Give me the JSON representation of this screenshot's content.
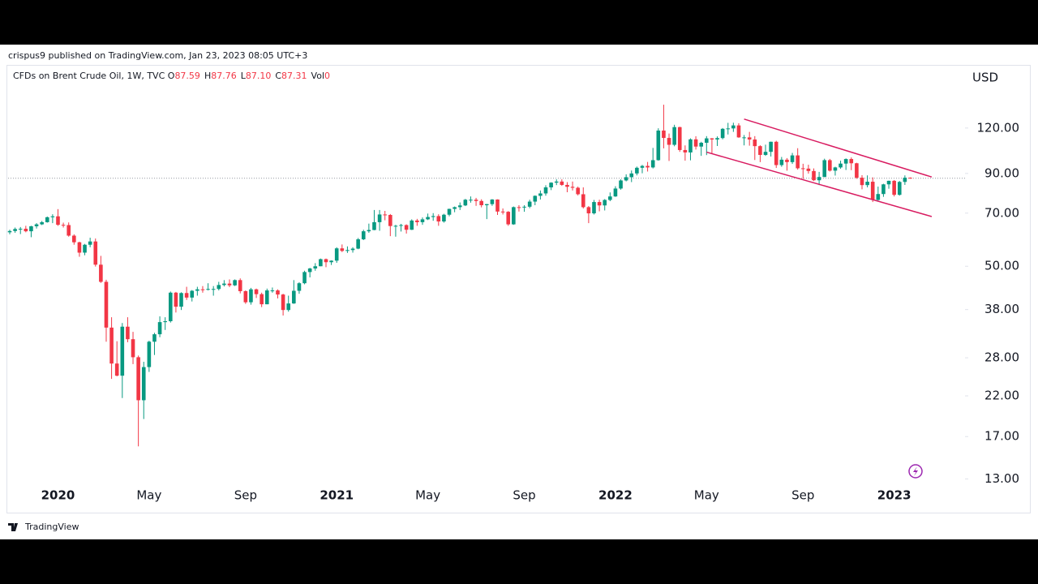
{
  "header": {
    "title": "crispus9 published on TradingView.com, Jan 23, 2023 08:05 UTC+3"
  },
  "footer": {
    "brand": "TradingView"
  },
  "chart_data": {
    "type": "candlestick",
    "legend": {
      "symbol": "CFDs on Brent Crude Oil, 1W, TVC",
      "items": [
        {
          "key": "O",
          "value": "87.59"
        },
        {
          "key": "H",
          "value": "87.76"
        },
        {
          "key": "L",
          "value": "87.10"
        },
        {
          "key": "C",
          "value": "87.31"
        },
        {
          "key": "Vol",
          "value": "0"
        }
      ]
    },
    "currency": "USD",
    "log_scale": true,
    "grid": false,
    "up_color": "#089981",
    "down_color": "#f23645",
    "channel_color": "#d81b60",
    "ylim": [
      12.7,
      179
    ],
    "yticks": [
      {
        "value": 13,
        "label": "13.00"
      },
      {
        "value": 17,
        "label": "17.00"
      },
      {
        "value": 22,
        "label": "22.00"
      },
      {
        "value": 28,
        "label": "28.00"
      },
      {
        "value": 38,
        "label": "38.00"
      },
      {
        "value": 50,
        "label": "50.00"
      },
      {
        "value": 70,
        "label": "70.00"
      },
      {
        "value": 90,
        "label": "90.00"
      },
      {
        "value": 120,
        "label": "120.00"
      }
    ],
    "categories": [
      null,
      null,
      null,
      null,
      null,
      null,
      null,
      null,
      null,
      "2020",
      null,
      null,
      null,
      null,
      null,
      null,
      null,
      null,
      null,
      null,
      null,
      null,
      null,
      null,
      null,
      null,
      "May",
      null,
      null,
      null,
      null,
      null,
      null,
      null,
      null,
      null,
      null,
      null,
      null,
      null,
      null,
      null,
      null,
      null,
      "Sep",
      null,
      null,
      null,
      null,
      null,
      null,
      null,
      null,
      null,
      null,
      null,
      null,
      null,
      null,
      null,
      null,
      "2021",
      null,
      null,
      null,
      null,
      null,
      null,
      null,
      null,
      null,
      null,
      null,
      null,
      null,
      null,
      null,
      null,
      "May",
      null,
      null,
      null,
      null,
      null,
      null,
      null,
      null,
      null,
      null,
      null,
      null,
      null,
      null,
      null,
      null,
      null,
      "Sep",
      null,
      null,
      null,
      null,
      null,
      null,
      null,
      null,
      null,
      null,
      null,
      null,
      null,
      null,
      null,
      null,
      "2022",
      null,
      null,
      null,
      null,
      null,
      null,
      null,
      null,
      null,
      null,
      null,
      null,
      null,
      null,
      null,
      null,
      "May",
      null,
      null,
      null,
      null,
      null,
      null,
      null,
      null,
      null,
      null,
      null,
      null,
      null,
      null,
      null,
      null,
      null,
      "Sep",
      null,
      null,
      null,
      null,
      null,
      null,
      null,
      null,
      null,
      null,
      null,
      null,
      null,
      null,
      null,
      null,
      "2023",
      null,
      null,
      null
    ],
    "open": [
      62.0,
      62.5,
      63.3,
      63.4,
      62.4,
      64.4,
      65.2,
      66.1,
      68.2,
      68.6,
      65.0,
      64.9,
      60.7,
      58.2,
      54.5,
      57.3,
      58.5,
      50.5,
      45.3,
      33.9,
      27.0,
      25.0,
      34.1,
      31.5,
      28.1,
      21.4,
      26.4,
      31.0,
      32.5,
      35.1,
      35.3,
      42.3,
      38.7,
      42.2,
      41.0,
      42.8,
      43.2,
      43.1,
      43.3,
      43.3,
      44.4,
      44.8,
      44.3,
      45.8,
      42.7,
      39.8,
      43.2,
      41.9,
      39.3,
      42.9,
      42.9,
      41.8,
      37.9,
      39.5,
      42.8,
      44.9,
      48.2,
      49.3,
      50.0,
      52.3,
      51.3,
      51.8,
      56.0,
      55.1,
      55.4,
      55.9,
      59.3,
      62.4,
      62.9,
      66.1,
      69.4,
      69.2,
      64.5,
      64.6,
      64.9,
      63.0,
      66.8,
      66.1,
      67.3,
      68.3,
      68.7,
      66.4,
      69.3,
      71.9,
      72.7,
      73.5,
      76.2,
      76.2,
      75.6,
      73.6,
      74.1,
      76.3,
      70.7,
      70.6,
      65.2,
      72.7,
      72.6,
      72.9,
      75.3,
      78.1,
      79.3,
      82.4,
      84.9,
      85.5,
      83.7,
      82.7,
      82.2,
      78.9,
      72.7,
      69.9,
      75.1,
      73.5,
      76.1,
      77.8,
      81.8,
      86.1,
      87.9,
      90.0,
      93.3,
      94.4,
      93.5,
      97.9,
      118.1,
      112.7,
      107.9,
      120.7,
      104.4,
      102.8,
      111.7,
      106.7,
      109.3,
      112.4,
      111.6,
      112.6,
      119.4,
      119.7,
      122.0,
      113.1,
      113.1,
      111.6,
      107.0,
      101.2,
      103.2,
      110.0,
      94.9,
      98.2,
      96.7,
      100.9,
      93.0,
      92.8,
      91.4,
      86.2,
      88.0,
      97.9,
      91.6,
      93.5,
      95.8,
      98.6,
      96.0,
      87.6,
      83.6,
      85.4,
      76.1,
      79.0,
      84.0,
      85.9,
      78.6,
      85.3,
      87.59
    ],
    "high": [
      63.0,
      63.9,
      64.1,
      64.6,
      64.6,
      65.7,
      66.6,
      68.5,
      69.5,
      71.8,
      65.9,
      66.0,
      61.2,
      58.4,
      57.6,
      59.9,
      59.6,
      53.4,
      45.9,
      36.2,
      31.1,
      34.9,
      36.2,
      33.0,
      28.4,
      27.3,
      31.2,
      32.8,
      36.4,
      36.2,
      42.6,
      42.5,
      42.4,
      43.9,
      43.0,
      43.9,
      44.1,
      44.9,
      44.1,
      45.3,
      45.8,
      46.0,
      46.0,
      46.3,
      42.9,
      43.6,
      43.4,
      42.3,
      43.4,
      43.7,
      43.2,
      42.0,
      41.5,
      45.8,
      45.2,
      48.6,
      49.5,
      51.0,
      52.5,
      52.5,
      51.9,
      56.4,
      57.4,
      56.7,
      56.4,
      59.8,
      63.0,
      65.5,
      71.4,
      71.4,
      71.0,
      69.6,
      65.0,
      65.4,
      65.2,
      67.3,
      67.5,
      68.1,
      69.8,
      70.0,
      69.5,
      69.7,
      72.0,
      73.0,
      74.9,
      76.6,
      77.8,
      77.1,
      76.4,
      74.2,
      76.5,
      76.4,
      72.1,
      70.9,
      73.0,
      73.6,
      73.6,
      76.2,
      78.3,
      80.8,
      83.5,
      85.1,
      86.7,
      86.7,
      85.2,
      85.5,
      82.8,
      82.4,
      73.2,
      76.1,
      76.2,
      76.5,
      79.8,
      83.0,
      86.7,
      89.5,
      91.7,
      94.0,
      95.0,
      96.8,
      105.8,
      119.8,
      139.1,
      115.9,
      122.5,
      121.0,
      107.5,
      112.4,
      113.9,
      110.0,
      114.0,
      112.6,
      113.8,
      120.0,
      124.0,
      124.1,
      123.7,
      114.8,
      117.1,
      114.0,
      107.6,
      108.0,
      110.1,
      110.7,
      99.9,
      99.2,
      102.5,
      105.6,
      95.7,
      95.1,
      92.9,
      90.9,
      98.8,
      98.7,
      93.9,
      97.6,
      99.0,
      99.6,
      96.3,
      89.0,
      88.9,
      87.8,
      82.8,
      84.3,
      86.0,
      86.3,
      85.8,
      88.9,
      87.76
    ],
    "low": [
      61.2,
      61.8,
      61.3,
      62.0,
      60.1,
      63.5,
      64.9,
      65.9,
      65.7,
      64.6,
      63.9,
      60.3,
      57.3,
      53.1,
      53.6,
      56.4,
      49.9,
      45.0,
      31.0,
      24.5,
      24.9,
      21.7,
      30.9,
      26.9,
      15.98,
      19.0,
      25.6,
      28.5,
      31.9,
      33.4,
      35.0,
      37.3,
      37.9,
      40.4,
      40.0,
      41.5,
      42.3,
      42.9,
      41.5,
      42.9,
      44.0,
      43.8,
      44.1,
      42.1,
      39.4,
      39.2,
      40.9,
      38.6,
      39.3,
      42.3,
      40.8,
      36.6,
      37.5,
      39.4,
      42.0,
      44.6,
      46.6,
      48.6,
      50.0,
      49.7,
      50.4,
      51.1,
      54.7,
      54.4,
      54.5,
      55.7,
      59.0,
      61.8,
      62.8,
      62.6,
      66.9,
      60.5,
      60.3,
      62.3,
      61.5,
      62.9,
      64.6,
      65.0,
      67.0,
      66.7,
      64.6,
      65.9,
      68.6,
      70.4,
      71.4,
      73.2,
      74.8,
      73.3,
      72.6,
      67.4,
      73.3,
      69.2,
      69.4,
      64.6,
      65.0,
      70.7,
      70.6,
      72.2,
      73.6,
      76.3,
      78.2,
      81.0,
      83.6,
      83.2,
      79.9,
      80.8,
      78.3,
      72.1,
      65.7,
      69.4,
      70.8,
      71.2,
      75.5,
      77.6,
      81.2,
      85.6,
      85.2,
      88.9,
      90.1,
      91.1,
      92.9,
      97.6,
      105.5,
      97.4,
      106.9,
      103.2,
      97.6,
      97.8,
      104.7,
      100.6,
      101.1,
      101.8,
      107.1,
      111.7,
      115.2,
      117.1,
      112.8,
      107.5,
      107.3,
      98.0,
      96.7,
      100.6,
      100.2,
      93.2,
      93.9,
      91.6,
      95.6,
      92.2,
      87.0,
      89.9,
      85.8,
      83.6,
      87.9,
      91.1,
      88.8,
      92.7,
      92.0,
      91.9,
      87.0,
      81.4,
      82.4,
      75.1,
      75.8,
      77.6,
      81.7,
      77.8,
      78.2,
      83.7,
      87.1
    ],
    "close": [
      62.5,
      63.3,
      63.4,
      62.4,
      64.4,
      65.2,
      66.1,
      68.2,
      68.6,
      65.0,
      64.9,
      60.7,
      58.2,
      54.5,
      57.3,
      58.5,
      50.5,
      45.3,
      33.9,
      27.0,
      25.0,
      34.1,
      31.5,
      28.1,
      21.4,
      26.4,
      31.0,
      32.5,
      35.1,
      35.3,
      42.3,
      38.7,
      42.2,
      41.0,
      42.8,
      43.2,
      43.1,
      43.3,
      43.3,
      44.4,
      44.8,
      44.3,
      45.8,
      42.7,
      39.8,
      43.2,
      41.9,
      39.3,
      42.9,
      42.9,
      41.8,
      37.9,
      39.5,
      42.8,
      44.9,
      48.2,
      49.3,
      50.0,
      52.3,
      51.3,
      51.8,
      56.0,
      55.1,
      55.4,
      55.9,
      59.3,
      62.4,
      62.9,
      66.1,
      69.4,
      69.2,
      64.5,
      64.6,
      64.9,
      63.0,
      66.8,
      66.1,
      67.3,
      68.3,
      68.7,
      66.4,
      69.3,
      71.9,
      72.7,
      73.5,
      76.2,
      76.2,
      75.6,
      73.6,
      74.1,
      76.3,
      70.7,
      70.6,
      65.2,
      72.7,
      72.6,
      72.9,
      75.3,
      78.1,
      79.3,
      82.4,
      84.9,
      85.5,
      83.7,
      82.7,
      82.2,
      78.9,
      72.7,
      69.9,
      75.1,
      73.5,
      76.1,
      77.8,
      81.8,
      86.1,
      87.9,
      90.0,
      93.3,
      94.4,
      93.5,
      97.9,
      118.1,
      112.7,
      107.9,
      120.7,
      104.4,
      102.8,
      111.7,
      106.7,
      109.3,
      112.4,
      111.6,
      112.6,
      119.4,
      119.7,
      122.0,
      113.1,
      113.1,
      111.6,
      107.0,
      101.2,
      103.2,
      110.0,
      94.9,
      98.2,
      96.7,
      100.9,
      93.0,
      92.8,
      91.4,
      86.2,
      88.0,
      97.9,
      91.6,
      93.5,
      95.8,
      98.6,
      96.0,
      87.6,
      83.6,
      85.4,
      76.1,
      79.0,
      84.0,
      85.9,
      78.6,
      85.3,
      87.6,
      87.31
    ],
    "channel": [
      {
        "x": [
          137,
          172
        ],
        "y": [
          127,
          88
        ]
      },
      {
        "x": [
          130,
          172
        ],
        "y": [
          103,
          68.5
        ]
      }
    ]
  }
}
